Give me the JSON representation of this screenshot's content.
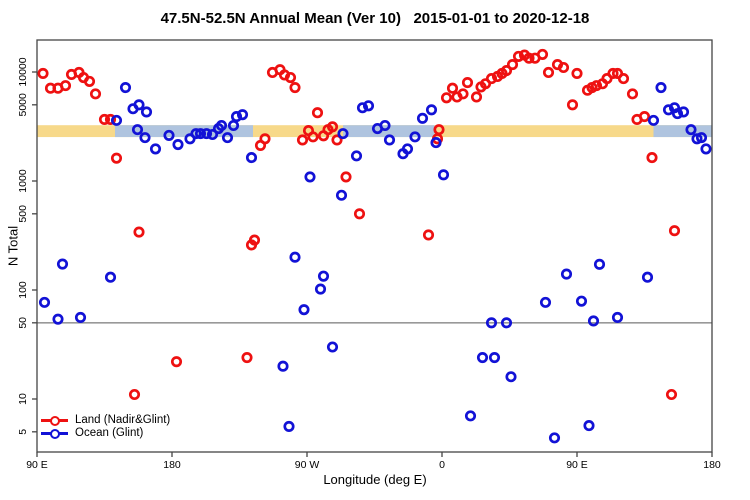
{
  "chart_data": {
    "type": "scatter",
    "title": "47.5N-52.5N Annual Mean (Ver 10)   2015-01-01 to 2020-12-18",
    "xlabel": "Longitude (deg E)",
    "ylabel": "N Total",
    "x_axis": {
      "range": [
        90,
        540
      ],
      "ticks": [
        90,
        180,
        270,
        360,
        450,
        540
      ],
      "tick_labels": [
        "90 E",
        "180",
        "90 W",
        "0",
        "90 E",
        "180"
      ]
    },
    "y_axis": {
      "scale": "log",
      "range": [
        4,
        18000
      ],
      "ticks": [
        5,
        10,
        50,
        100,
        500,
        1000,
        5000,
        10000
      ],
      "tick_labels": [
        "5",
        "10",
        "50",
        "100",
        "500",
        "1000",
        "5000",
        "10000"
      ]
    },
    "reference_line": {
      "value": 50,
      "color": "#999999"
    },
    "bands": {
      "land_band": {
        "color": "#F7D98A",
        "value_from": 2530,
        "value_to": 3250,
        "x_from": 90,
        "x_to": 540
      },
      "ocean_band_color": "#AFC4DF",
      "ocean_band_segments": [
        {
          "x_from": 142,
          "x_to": 234
        },
        {
          "x_from": 294,
          "x_to": 355
        },
        {
          "x_from": 501,
          "x_to": 540
        }
      ]
    },
    "legend": {
      "position": "bottom-left"
    },
    "series": [
      {
        "name": "Land (Nadir&Glint)",
        "color": "#EE1111",
        "points": [
          [
            94,
            9700
          ],
          [
            99,
            7100
          ],
          [
            104,
            7100
          ],
          [
            109,
            7500
          ],
          [
            113,
            9500
          ],
          [
            118,
            9900
          ],
          [
            121,
            8900
          ],
          [
            125,
            8200
          ],
          [
            129,
            6300
          ],
          [
            135,
            3670
          ],
          [
            139,
            3670
          ],
          [
            143,
            1620
          ],
          [
            155,
            11
          ],
          [
            158,
            340
          ],
          [
            183,
            22
          ],
          [
            230,
            24
          ],
          [
            233,
            259
          ],
          [
            235,
            287
          ],
          [
            239,
            2120
          ],
          [
            242,
            2440
          ],
          [
            247,
            9900
          ],
          [
            252,
            10500
          ],
          [
            255,
            9400
          ],
          [
            259,
            8900
          ],
          [
            262,
            7200
          ],
          [
            267,
            2380
          ],
          [
            271,
            2900
          ],
          [
            274,
            2540
          ],
          [
            277,
            4230
          ],
          [
            281,
            2600
          ],
          [
            284,
            2960
          ],
          [
            287,
            3140
          ],
          [
            290,
            2380
          ],
          [
            296,
            1090
          ],
          [
            305,
            500
          ],
          [
            351,
            320
          ],
          [
            357,
            2440
          ],
          [
            358,
            2960
          ],
          [
            363,
            5800
          ],
          [
            367,
            7100
          ],
          [
            370,
            5900
          ],
          [
            374,
            6300
          ],
          [
            377,
            8000
          ],
          [
            383,
            5900
          ],
          [
            386,
            7300
          ],
          [
            389,
            7800
          ],
          [
            393,
            8700
          ],
          [
            397,
            9100
          ],
          [
            400,
            9700
          ],
          [
            403,
            10300
          ],
          [
            407,
            11700
          ],
          [
            411,
            13900
          ],
          [
            415,
            14300
          ],
          [
            418,
            13400
          ],
          [
            422,
            13400
          ],
          [
            427,
            14500
          ],
          [
            431,
            9900
          ],
          [
            437,
            11700
          ],
          [
            441,
            11000
          ],
          [
            447,
            5000
          ],
          [
            450,
            9700
          ],
          [
            457,
            6800
          ],
          [
            460,
            7200
          ],
          [
            463,
            7500
          ],
          [
            467,
            7800
          ],
          [
            470,
            8700
          ],
          [
            474,
            9700
          ],
          [
            477,
            9700
          ],
          [
            481,
            8700
          ],
          [
            487,
            6300
          ],
          [
            490,
            3670
          ],
          [
            495,
            3900
          ],
          [
            500,
            1640
          ],
          [
            513,
            11
          ],
          [
            515,
            350
          ]
        ]
      },
      {
        "name": "Ocean (Glint)",
        "color": "#1212D6",
        "points": [
          [
            95,
            77
          ],
          [
            104,
            54
          ],
          [
            107,
            173
          ],
          [
            119,
            56
          ],
          [
            139,
            131
          ],
          [
            143,
            3600
          ],
          [
            149,
            7200
          ],
          [
            154,
            4600
          ],
          [
            157,
            2960
          ],
          [
            158,
            5000
          ],
          [
            162,
            2500
          ],
          [
            163,
            4300
          ],
          [
            169,
            1970
          ],
          [
            178,
            2620
          ],
          [
            184,
            2160
          ],
          [
            192,
            2440
          ],
          [
            196,
            2720
          ],
          [
            199,
            2720
          ],
          [
            203,
            2720
          ],
          [
            207,
            2670
          ],
          [
            211,
            3030
          ],
          [
            213,
            3230
          ],
          [
            217,
            2500
          ],
          [
            221,
            3230
          ],
          [
            223,
            3900
          ],
          [
            227,
            4060
          ],
          [
            233,
            1640
          ],
          [
            254,
            20
          ],
          [
            258,
            5.6
          ],
          [
            262,
            200
          ],
          [
            268,
            66
          ],
          [
            272,
            1090
          ],
          [
            279,
            102
          ],
          [
            281,
            134
          ],
          [
            287,
            30
          ],
          [
            293,
            740
          ],
          [
            294,
            2720
          ],
          [
            303,
            1700
          ],
          [
            307,
            4700
          ],
          [
            311,
            4900
          ],
          [
            317,
            3030
          ],
          [
            322,
            3230
          ],
          [
            325,
            2380
          ],
          [
            334,
            1780
          ],
          [
            337,
            1970
          ],
          [
            342,
            2540
          ],
          [
            347,
            3760
          ],
          [
            353,
            4500
          ],
          [
            356,
            2250
          ],
          [
            361,
            1140
          ],
          [
            379,
            7
          ],
          [
            387,
            24
          ],
          [
            393,
            50
          ],
          [
            395,
            24
          ],
          [
            403,
            50
          ],
          [
            406,
            16
          ],
          [
            429,
            77
          ],
          [
            435,
            4.4
          ],
          [
            443,
            140
          ],
          [
            453,
            79
          ],
          [
            458,
            5.7
          ],
          [
            461,
            52
          ],
          [
            465,
            172
          ],
          [
            477,
            56
          ],
          [
            497,
            131
          ],
          [
            501,
            3600
          ],
          [
            506,
            7200
          ],
          [
            511,
            4500
          ],
          [
            515,
            4700
          ],
          [
            517,
            4150
          ],
          [
            521,
            4300
          ],
          [
            526,
            2960
          ],
          [
            530,
            2440
          ],
          [
            533,
            2500
          ],
          [
            536,
            1970
          ]
        ]
      }
    ]
  }
}
